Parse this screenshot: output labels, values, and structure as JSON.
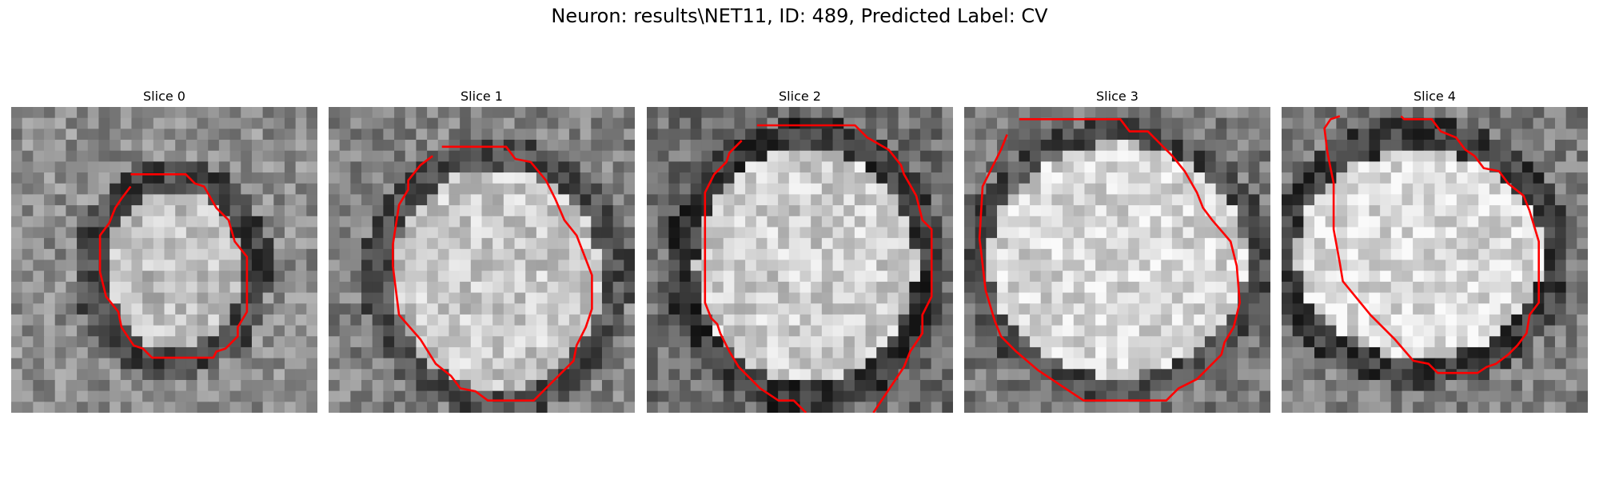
{
  "figure": {
    "title": "Neuron: results\\NET11, ID: 489, Predicted Label: CV"
  },
  "slices": [
    {
      "label": "Slice 0",
      "seed": 11,
      "texture": {
        "center": [
          0.53,
          0.53
        ],
        "inner_radius": [
          0.22,
          0.26
        ],
        "outer_radius": [
          0.32,
          0.36
        ],
        "bright": 190,
        "ring": 70,
        "background": 140
      },
      "contour": [
        [
          0.39,
          0.22
        ],
        [
          0.57,
          0.22
        ],
        [
          0.6,
          0.25
        ],
        [
          0.63,
          0.26
        ],
        [
          0.67,
          0.33
        ],
        [
          0.71,
          0.37
        ],
        [
          0.73,
          0.44
        ],
        [
          0.77,
          0.49
        ],
        [
          0.77,
          0.67
        ],
        [
          0.74,
          0.72
        ],
        [
          0.74,
          0.75
        ],
        [
          0.7,
          0.79
        ],
        [
          0.67,
          0.8
        ],
        [
          0.66,
          0.82
        ],
        [
          0.46,
          0.82
        ],
        [
          0.43,
          0.79
        ],
        [
          0.4,
          0.78
        ],
        [
          0.36,
          0.72
        ],
        [
          0.35,
          0.67
        ],
        [
          0.31,
          0.62
        ],
        [
          0.29,
          0.54
        ],
        [
          0.29,
          0.42
        ],
        [
          0.32,
          0.38
        ],
        [
          0.34,
          0.33
        ],
        [
          0.36,
          0.3
        ],
        [
          0.39,
          0.26
        ]
      ]
    },
    {
      "label": "Slice 1",
      "seed": 23,
      "texture": {
        "center": [
          0.55,
          0.56
        ],
        "inner_radius": [
          0.34,
          0.36
        ],
        "outer_radius": [
          0.44,
          0.46
        ],
        "bright": 200,
        "ring": 80,
        "background": 130
      },
      "contour": [
        [
          0.37,
          0.13
        ],
        [
          0.58,
          0.13
        ],
        [
          0.61,
          0.17
        ],
        [
          0.66,
          0.18
        ],
        [
          0.71,
          0.24
        ],
        [
          0.74,
          0.3
        ],
        [
          0.77,
          0.37
        ],
        [
          0.81,
          0.42
        ],
        [
          0.86,
          0.55
        ],
        [
          0.86,
          0.66
        ],
        [
          0.84,
          0.72
        ],
        [
          0.81,
          0.78
        ],
        [
          0.8,
          0.83
        ],
        [
          0.76,
          0.87
        ],
        [
          0.72,
          0.91
        ],
        [
          0.67,
          0.96
        ],
        [
          0.52,
          0.96
        ],
        [
          0.48,
          0.93
        ],
        [
          0.43,
          0.92
        ],
        [
          0.4,
          0.88
        ],
        [
          0.35,
          0.84
        ],
        [
          0.3,
          0.76
        ],
        [
          0.23,
          0.68
        ],
        [
          0.21,
          0.52
        ],
        [
          0.21,
          0.45
        ],
        [
          0.23,
          0.32
        ],
        [
          0.26,
          0.27
        ],
        [
          0.26,
          0.24
        ],
        [
          0.3,
          0.19
        ],
        [
          0.34,
          0.16
        ]
      ]
    },
    {
      "label": "Slice 2",
      "seed": 37,
      "texture": {
        "center": [
          0.52,
          0.52
        ],
        "inner_radius": [
          0.36,
          0.38
        ],
        "outer_radius": [
          0.46,
          0.48
        ],
        "bright": 205,
        "ring": 55,
        "background": 110
      },
      "contour": [
        [
          0.36,
          0.06
        ],
        [
          0.68,
          0.06
        ],
        [
          0.72,
          0.1
        ],
        [
          0.79,
          0.14
        ],
        [
          0.83,
          0.19
        ],
        [
          0.84,
          0.22
        ],
        [
          0.88,
          0.29
        ],
        [
          0.9,
          0.37
        ],
        [
          0.93,
          0.4
        ],
        [
          0.93,
          0.62
        ],
        [
          0.9,
          0.68
        ],
        [
          0.9,
          0.74
        ],
        [
          0.86,
          0.8
        ],
        [
          0.84,
          0.85
        ],
        [
          0.8,
          0.91
        ],
        [
          0.78,
          0.94
        ],
        [
          0.74,
          1.0
        ],
        null,
        [
          0.52,
          1.0
        ],
        [
          0.48,
          0.96
        ],
        [
          0.43,
          0.96
        ],
        [
          0.37,
          0.92
        ],
        [
          0.3,
          0.85
        ],
        [
          0.27,
          0.8
        ],
        [
          0.24,
          0.74
        ],
        [
          0.23,
          0.71
        ],
        [
          0.21,
          0.69
        ],
        [
          0.19,
          0.64
        ],
        [
          0.19,
          0.28
        ],
        [
          0.22,
          0.22
        ],
        [
          0.26,
          0.18
        ],
        [
          0.27,
          0.15
        ],
        [
          0.31,
          0.11
        ]
      ]
    },
    {
      "label": "Slice 3",
      "seed": 51,
      "texture": {
        "center": [
          0.5,
          0.5
        ],
        "inner_radius": [
          0.42,
          0.38
        ],
        "outer_radius": [
          0.5,
          0.46
        ],
        "bright": 215,
        "ring": 75,
        "background": 120
      },
      "contour": [
        [
          0.18,
          0.04
        ],
        [
          0.51,
          0.04
        ],
        [
          0.54,
          0.08
        ],
        [
          0.6,
          0.08
        ],
        [
          0.64,
          0.12
        ],
        [
          0.68,
          0.16
        ],
        [
          0.72,
          0.21
        ],
        [
          0.76,
          0.28
        ],
        [
          0.78,
          0.33
        ],
        [
          0.81,
          0.37
        ],
        [
          0.87,
          0.44
        ],
        [
          0.89,
          0.52
        ],
        [
          0.9,
          0.64
        ],
        [
          0.88,
          0.72
        ],
        [
          0.85,
          0.77
        ],
        [
          0.84,
          0.81
        ],
        [
          0.79,
          0.86
        ],
        [
          0.76,
          0.89
        ],
        [
          0.7,
          0.92
        ],
        [
          0.66,
          0.96
        ],
        [
          0.39,
          0.96
        ],
        [
          0.33,
          0.92
        ],
        [
          0.24,
          0.86
        ],
        [
          0.17,
          0.8
        ],
        [
          0.12,
          0.75
        ],
        [
          0.1,
          0.7
        ],
        [
          0.07,
          0.6
        ],
        [
          0.05,
          0.43
        ],
        [
          0.06,
          0.26
        ],
        [
          0.09,
          0.2
        ],
        [
          0.12,
          0.14
        ],
        [
          0.14,
          0.09
        ]
      ]
    },
    {
      "label": "Slice 4",
      "seed": 67,
      "texture": {
        "center": [
          0.45,
          0.48
        ],
        "inner_radius": [
          0.4,
          0.34
        ],
        "outer_radius": [
          0.49,
          0.44
        ],
        "bright": 220,
        "ring": 60,
        "background": 125
      },
      "contour": [
        [
          0.39,
          0.03
        ],
        [
          0.4,
          0.04
        ],
        [
          0.49,
          0.04
        ],
        [
          0.52,
          0.08
        ],
        [
          0.57,
          0.1
        ],
        [
          0.6,
          0.14
        ],
        [
          0.63,
          0.16
        ],
        [
          0.66,
          0.2
        ],
        [
          0.71,
          0.21
        ],
        [
          0.74,
          0.25
        ],
        [
          0.79,
          0.29
        ],
        [
          0.81,
          0.34
        ],
        [
          0.84,
          0.44
        ],
        [
          0.84,
          0.64
        ],
        [
          0.81,
          0.68
        ],
        [
          0.8,
          0.74
        ],
        [
          0.77,
          0.78
        ],
        [
          0.74,
          0.81
        ],
        [
          0.7,
          0.84
        ],
        [
          0.67,
          0.85
        ],
        [
          0.64,
          0.87
        ],
        [
          0.51,
          0.87
        ],
        [
          0.48,
          0.84
        ],
        [
          0.43,
          0.83
        ],
        [
          0.37,
          0.76
        ],
        [
          0.29,
          0.68
        ],
        [
          0.2,
          0.57
        ],
        [
          0.19,
          0.51
        ],
        [
          0.17,
          0.4
        ],
        [
          0.17,
          0.25
        ],
        [
          0.15,
          0.15
        ],
        [
          0.14,
          0.07
        ],
        [
          0.16,
          0.04
        ],
        [
          0.19,
          0.03
        ]
      ]
    }
  ],
  "grid_size": 28,
  "colors": {
    "contour": "#ff0000"
  }
}
